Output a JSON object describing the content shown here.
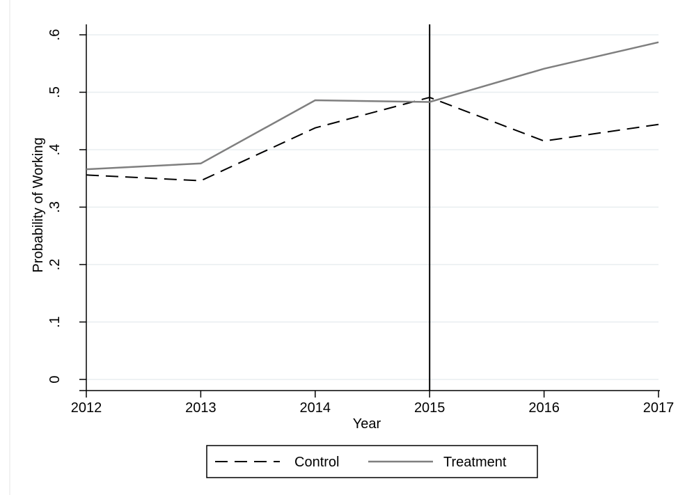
{
  "chart_data": {
    "type": "line",
    "title": "",
    "xlabel": "Year",
    "ylabel": "Probability of Working",
    "x": [
      2012,
      2013,
      2014,
      2015,
      2016,
      2017
    ],
    "x_ticks": [
      "2012",
      "2013",
      "2014",
      "2015",
      "2016",
      "2017"
    ],
    "y_ticks": [
      "0",
      ".1",
      ".2",
      ".3",
      ".4",
      ".5",
      ".6"
    ],
    "y_tick_values": [
      0,
      0.1,
      0.2,
      0.3,
      0.4,
      0.5,
      0.6
    ],
    "xlim": [
      2012,
      2017
    ],
    "ylim": [
      0,
      0.6
    ],
    "grid": "horizontal",
    "reference_line_x": 2015,
    "legend_position": "bottom",
    "series": [
      {
        "name": "Control",
        "values": [
          0.356,
          0.346,
          0.438,
          0.491,
          0.415,
          0.444
        ],
        "color": "#000000",
        "style": "dashed"
      },
      {
        "name": "Treatment",
        "values": [
          0.366,
          0.376,
          0.486,
          0.483,
          0.541,
          0.587
        ],
        "color": "#7f7f7f",
        "style": "solid"
      }
    ]
  }
}
